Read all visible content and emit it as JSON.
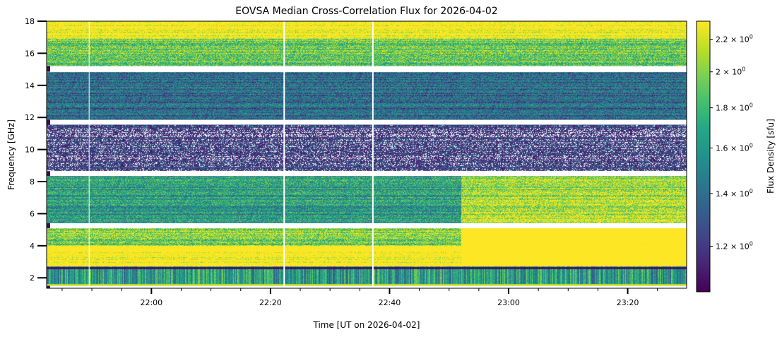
{
  "chart_data": {
    "type": "heatmap",
    "title": "EOVSA Median Cross-Correlation Flux for 2026-04-02",
    "xlabel": "Time [UT on 2026-04-02]",
    "ylabel": "Frequency [GHz]",
    "x_range_minutes_utc": [
      1302.4,
      1409.9
    ],
    "x_ticks": [
      {
        "minutes": 1320,
        "label": "22:00"
      },
      {
        "minutes": 1340,
        "label": "22:20"
      },
      {
        "minutes": 1360,
        "label": "22:40"
      },
      {
        "minutes": 1380,
        "label": "23:00"
      },
      {
        "minutes": 1400,
        "label": "23:20"
      }
    ],
    "x_minor_tick_interval_minutes": 5,
    "ylim": [
      1.35,
      18.0
    ],
    "y_ticks": [
      {
        "value": 2,
        "label": "2"
      },
      {
        "value": 4,
        "label": "4"
      },
      {
        "value": 6,
        "label": "6"
      },
      {
        "value": 8,
        "label": "8"
      },
      {
        "value": 10,
        "label": "10"
      },
      {
        "value": 12,
        "label": "12"
      },
      {
        "value": 14,
        "label": "14"
      },
      {
        "value": 16,
        "label": "16"
      },
      {
        "value": 18,
        "label": "18"
      }
    ],
    "frequency_gaps_ghz": [
      [
        14.85,
        15.2
      ],
      [
        11.55,
        11.85
      ],
      [
        8.35,
        8.65
      ],
      [
        5.1,
        5.4
      ],
      [
        1.35,
        1.5
      ]
    ],
    "time_gaps_minutes": [
      1309.6,
      1342.3,
      1357.2
    ],
    "colorbar": {
      "label": "Flux Density [sfu]",
      "scale": "log",
      "colormap": "viridis",
      "range": [
        1.05,
        2.32
      ],
      "ticks": [
        {
          "value": 1.2,
          "label_mantissa": "1.2",
          "label_exp": "0"
        },
        {
          "value": 1.4,
          "label_mantissa": "1.4",
          "label_exp": "0"
        },
        {
          "value": 1.6,
          "label_mantissa": "1.6",
          "label_exp": "0"
        },
        {
          "value": 1.8,
          "label_mantissa": "1.8",
          "label_exp": "0"
        },
        {
          "value": 2.0,
          "label_mantissa": "2",
          "label_exp": "0"
        },
        {
          "value": 2.2,
          "label_mantissa": "2.2",
          "label_exp": "0"
        }
      ]
    },
    "regions": [
      {
        "freq_ghz": [
          15.2,
          18.0
        ],
        "level": 0.75,
        "note": "bright band near 17-18 GHz"
      },
      {
        "freq_ghz": [
          11.85,
          14.85
        ],
        "level": 0.35
      },
      {
        "freq_ghz": [
          8.65,
          11.55
        ],
        "level": 0.15
      },
      {
        "freq_ghz": [
          5.4,
          8.35
        ],
        "level": 0.55,
        "note": "brightens after ~22:52"
      },
      {
        "freq_ghz": [
          2.7,
          5.1
        ],
        "level": 0.8,
        "note": "saturated after ~22:52"
      },
      {
        "freq_ghz": [
          1.5,
          2.7
        ],
        "level": 0.6,
        "note": "vertical striping"
      }
    ],
    "event_onset_minutes": 1372.0,
    "grid": false,
    "legend": "none (colorbar right)"
  }
}
